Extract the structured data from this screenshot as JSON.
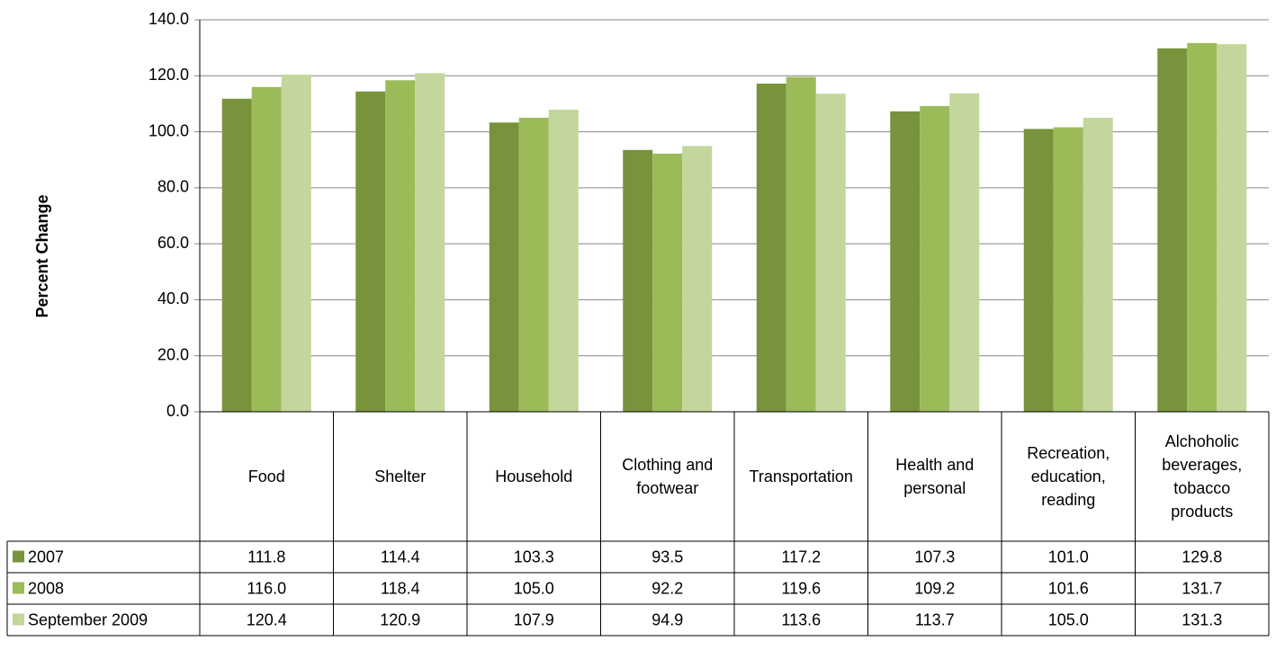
{
  "chart_data": {
    "type": "bar",
    "y_label": "Percent Change",
    "categories": [
      "Food",
      "Shelter",
      "Household",
      "Clothing and footwear",
      "Transportation",
      "Health and personal",
      "Recreation, education, reading",
      "Alchoholic beverages, tobacco products"
    ],
    "series": [
      {
        "name": "2007",
        "color": "#77933c",
        "values": [
          111.8,
          114.4,
          103.3,
          93.5,
          117.2,
          107.3,
          101.0,
          129.8
        ],
        "value_labels": [
          "111.8",
          "114.4",
          "103.3",
          "93.5",
          "117.2",
          "107.3",
          "101.0",
          "129.8"
        ]
      },
      {
        "name": "2008",
        "color": "#9bbb59",
        "values": [
          116.0,
          118.4,
          105.0,
          92.2,
          119.6,
          109.2,
          101.6,
          131.7
        ],
        "value_labels": [
          "116.0",
          "118.4",
          "105.0",
          "92.2",
          "119.6",
          "109.2",
          "101.6",
          "131.7"
        ]
      },
      {
        "name": "September 2009",
        "color": "#c3d69b",
        "values": [
          120.4,
          120.9,
          107.9,
          94.9,
          113.6,
          113.7,
          105.0,
          131.3
        ],
        "value_labels": [
          "120.4",
          "120.9",
          "107.9",
          "94.9",
          "113.6",
          "113.7",
          "105.0",
          "131.3"
        ]
      }
    ],
    "ylim": [
      0,
      140
    ],
    "yticks": [
      {
        "value": 0,
        "label": "0.0"
      },
      {
        "value": 20,
        "label": "20.0"
      },
      {
        "value": 40,
        "label": "40.0"
      },
      {
        "value": 60,
        "label": "60.0"
      },
      {
        "value": 80,
        "label": "80.0"
      },
      {
        "value": 100,
        "label": "100.0"
      },
      {
        "value": 120,
        "label": "120.0"
      },
      {
        "value": 140,
        "label": "140.0"
      }
    ],
    "grid": true
  }
}
